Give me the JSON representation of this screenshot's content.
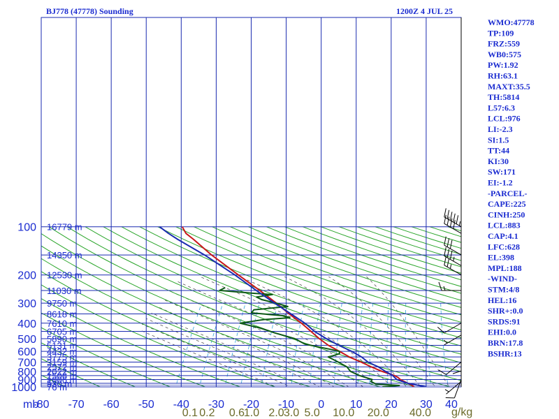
{
  "chart_data": {
    "type": "line",
    "title": "BJ778 (47778) Sounding",
    "valid_time": "1200Z  4 JUL 25",
    "pressure_axis": {
      "unit_label": "mb",
      "ticks": [
        100,
        200,
        300,
        400,
        500,
        600,
        700,
        800,
        900,
        1000
      ],
      "log_scale": true
    },
    "temperature_axis": {
      "ticks": [
        -80,
        -70,
        -60,
        -50,
        -40,
        -30,
        -20,
        -10,
        0,
        10,
        20,
        30,
        40
      ],
      "range": [
        -80,
        40
      ]
    },
    "mixing_ratio_axis": {
      "unit_label": "g/kg",
      "ticks": [
        {
          "label": "0.1",
          "t": -37.5
        },
        {
          "label": "0.2",
          "t": -32.6
        },
        {
          "label": "0.6",
          "t": -24.1
        },
        {
          "label": "1.0",
          "t": -19.9
        },
        {
          "label": "2.0",
          "t": -12.8
        },
        {
          "label": "3.0",
          "t": -8.5
        },
        {
          "label": "5.0",
          "t": -2.6
        },
        {
          "label": "10.0",
          "t": 6.4
        },
        {
          "label": "20.0",
          "t": 16.3
        },
        {
          "label": "40.0",
          "t": 28.3
        }
      ]
    },
    "height_labels": [
      {
        "p": 100,
        "label": "16779 m"
      },
      {
        "p": 150,
        "label": "14350 m"
      },
      {
        "p": 200,
        "label": "12530 m"
      },
      {
        "p": 250,
        "label": "11030 m"
      },
      {
        "p": 300,
        "label": "9750 m"
      },
      {
        "p": 350,
        "label": "8618 m"
      },
      {
        "p": 400,
        "label": "7610 m"
      },
      {
        "p": 450,
        "label": "6705 m"
      },
      {
        "p": 500,
        "label": "5890 m"
      },
      {
        "p": 550,
        "label": "5131 m"
      },
      {
        "p": 600,
        "label": "4432 m"
      },
      {
        "p": 650,
        "label": "3775 m"
      },
      {
        "p": 700,
        "label": "3159 m"
      },
      {
        "p": 750,
        "label": "2572 m"
      },
      {
        "p": 800,
        "label": "2022 m"
      },
      {
        "p": 850,
        "label": "1506 m"
      },
      {
        "p": 900,
        "label": "1006 m"
      },
      {
        "p": 950,
        "label": "530 m"
      },
      {
        "p": 1000,
        "label": "76 m"
      }
    ],
    "series": [
      {
        "name": "Temperature",
        "color": "#c8161a",
        "points": [
          [
            1000,
            26.5
          ],
          [
            975,
            25.5
          ],
          [
            950,
            24
          ],
          [
            925,
            22.5
          ],
          [
            900,
            21
          ],
          [
            875,
            20
          ],
          [
            850,
            18.5
          ],
          [
            800,
            14
          ],
          [
            750,
            10
          ],
          [
            700,
            6
          ],
          [
            650,
            1.5
          ],
          [
            600,
            -2.5
          ],
          [
            550,
            -7
          ],
          [
            500,
            -11
          ],
          [
            450,
            -15
          ],
          [
            400,
            -19.5
          ],
          [
            350,
            -25
          ],
          [
            300,
            -31
          ],
          [
            250,
            -38.5
          ],
          [
            200,
            -48
          ],
          [
            150,
            -60
          ],
          [
            120,
            -68.5
          ],
          [
            110,
            -72
          ],
          [
            100,
            -74.5
          ]
        ]
      },
      {
        "name": "Dewpoint",
        "color": "#0e5a16",
        "points": [
          [
            1000,
            17.5
          ],
          [
            980,
            22
          ],
          [
            960,
            15
          ],
          [
            925,
            13
          ],
          [
            900,
            13
          ],
          [
            850,
            8.5
          ],
          [
            800,
            5
          ],
          [
            750,
            3
          ],
          [
            700,
            -0.5
          ],
          [
            650,
            -4.5
          ],
          [
            640,
            -3.5
          ],
          [
            620,
            -2
          ],
          [
            600,
            -2.5
          ],
          [
            580,
            -6
          ],
          [
            560,
            -10
          ],
          [
            540,
            -14
          ],
          [
            500,
            -18
          ],
          [
            460,
            -25
          ],
          [
            430,
            -30
          ],
          [
            400,
            -37
          ],
          [
            380,
            -31
          ],
          [
            370,
            -24
          ],
          [
            360,
            -26
          ],
          [
            345,
            -36
          ],
          [
            330,
            -36
          ],
          [
            315,
            -27
          ],
          [
            300,
            -31
          ],
          [
            285,
            -36
          ],
          [
            275,
            -38
          ],
          [
            265,
            -34
          ],
          [
            260,
            -40
          ],
          [
            250,
            -50
          ],
          [
            240,
            -49
          ]
        ]
      },
      {
        "name": "Parcel",
        "color": "#1a2bb0",
        "points": [
          [
            1000,
            30
          ],
          [
            950,
            24
          ],
          [
            900,
            20
          ],
          [
            850,
            18
          ],
          [
            800,
            15
          ],
          [
            750,
            12
          ],
          [
            700,
            8
          ],
          [
            650,
            5
          ],
          [
            600,
            1
          ],
          [
            550,
            -4
          ],
          [
            500,
            -9
          ],
          [
            450,
            -14
          ],
          [
            400,
            -18.5
          ],
          [
            350,
            -24.5
          ],
          [
            300,
            -31.5
          ],
          [
            250,
            -39.5
          ],
          [
            200,
            -49
          ],
          [
            150,
            -62
          ],
          [
            120,
            -73
          ],
          [
            110,
            -77
          ],
          [
            100,
            -81
          ]
        ]
      }
    ],
    "wind_barbs": [
      {
        "p": 100,
        "dir": 300,
        "spd": 55
      },
      {
        "p": 110,
        "dir": 300,
        "spd": 40
      },
      {
        "p": 150,
        "dir": 300,
        "spd": 30
      },
      {
        "p": 175,
        "dir": 300,
        "spd": 35
      },
      {
        "p": 200,
        "dir": 300,
        "spd": 25
      },
      {
        "p": 250,
        "dir": 270,
        "spd": 15
      },
      {
        "p": 400,
        "dir": 240,
        "spd": 10
      },
      {
        "p": 475,
        "dir": 240,
        "spd": 5
      },
      {
        "p": 600,
        "dir": 180,
        "spd": 10
      },
      {
        "p": 700,
        "dir": 230,
        "spd": 10
      },
      {
        "p": 900,
        "dir": 200,
        "spd": 10
      },
      {
        "p": 925,
        "dir": 230,
        "spd": 5
      }
    ]
  },
  "indices": [
    "WMO:47778",
    "TP:109",
    "FRZ:559",
    "WB0:575",
    "PW:1.92",
    "RH:63.1",
    "MAXT:35.5",
    "TH:5814",
    "L57:6.3",
    "LCL:976",
    "LI:-2.3",
    "SI:1.5",
    "TT:44",
    "KI:30",
    "SW:171",
    "EI:-1.2",
    "-PARCEL-",
    "CAPE:225",
    "CINH:250",
    "LCL:883",
    "CAP:4.1",
    "LFC:628",
    "EL:398",
    "MPL:188",
    "-WIND-",
    "STM:4/8",
    "HEL:16",
    "SHR+:0.0",
    "SRDS:91",
    "EHI:0.0",
    "BRN:17.8",
    "BSHR:13"
  ],
  "colors": {
    "grid": "#1a2bb0",
    "dry_adiabat": "#2aa52a",
    "moist_adiabat": "#555555",
    "mixing_ratio": "#33a3d8",
    "text": "#1a2bd0",
    "mixing_text": "#6b6b2a"
  }
}
